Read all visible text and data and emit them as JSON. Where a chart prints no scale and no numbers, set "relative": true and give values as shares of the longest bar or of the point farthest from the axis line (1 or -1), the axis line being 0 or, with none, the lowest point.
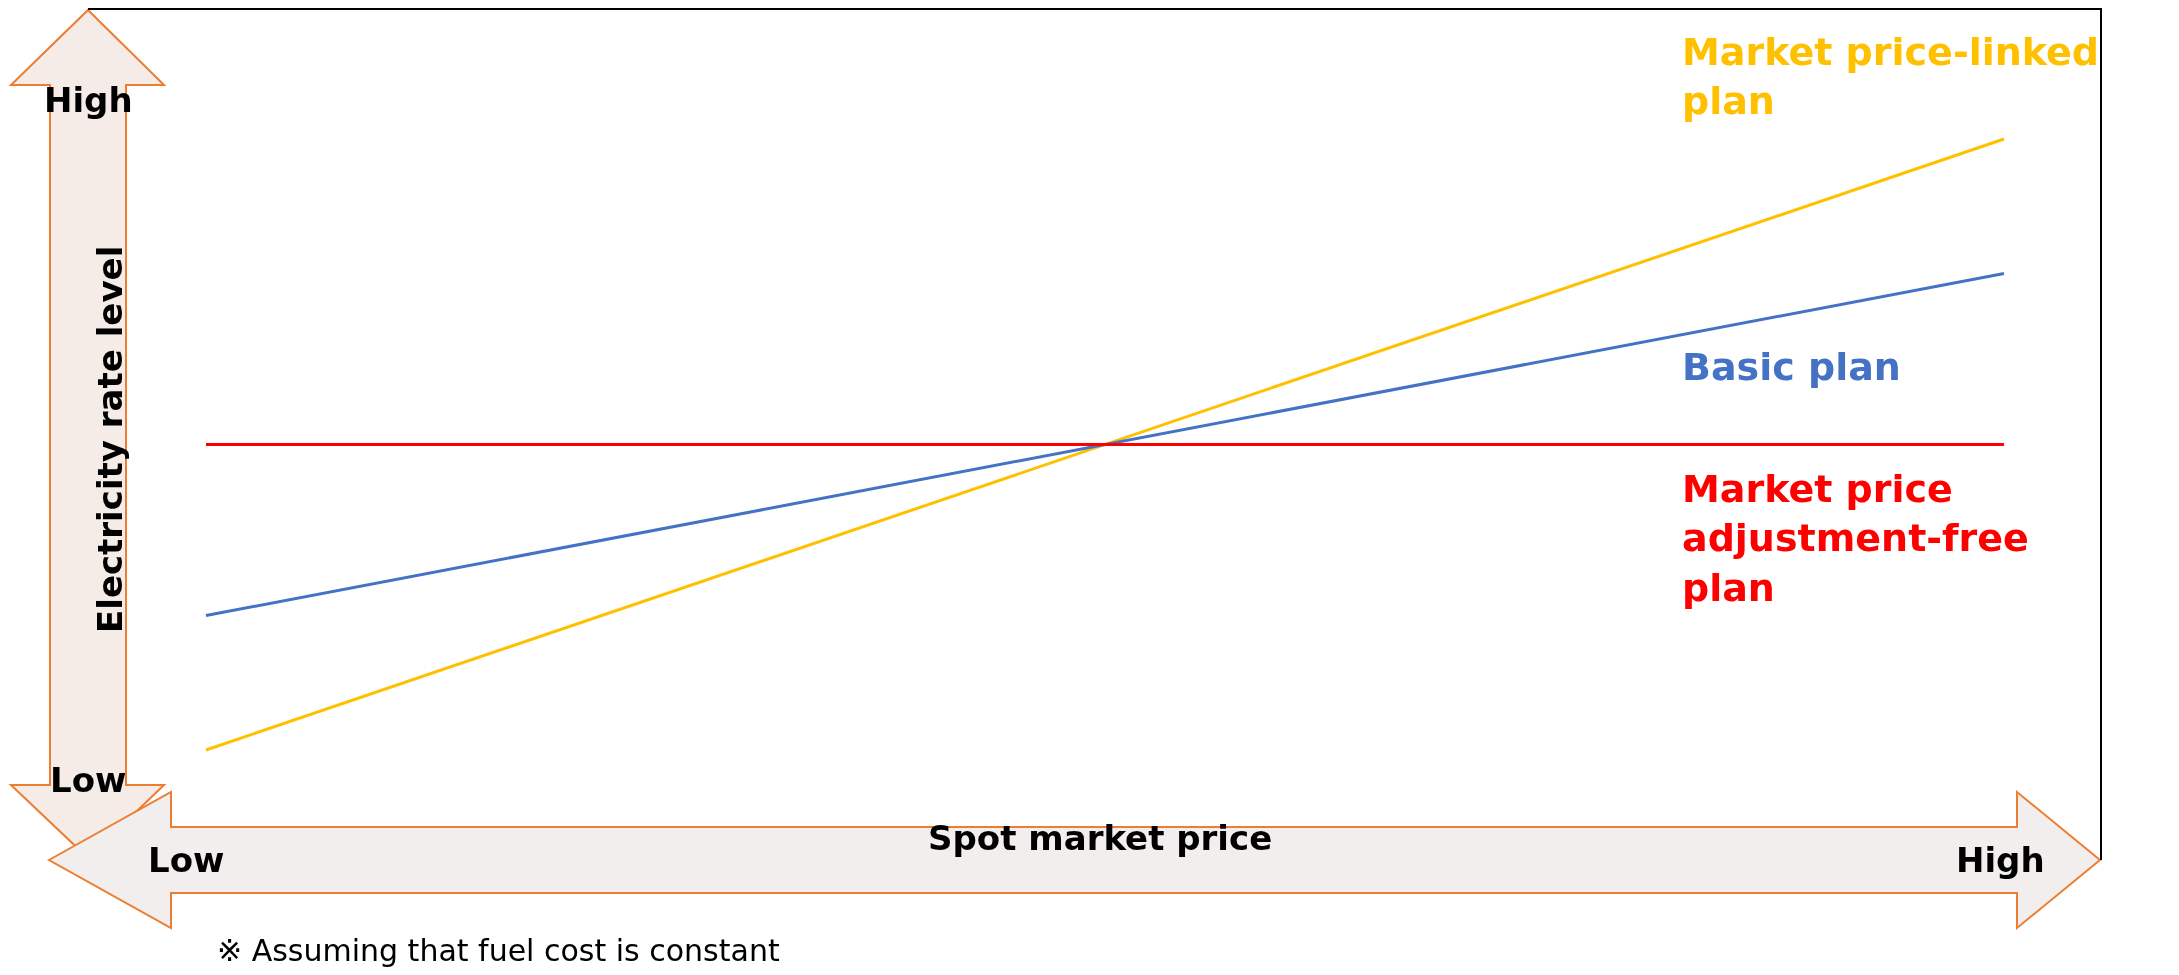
{
  "chart_data": {
    "type": "line",
    "relative": true,
    "categories": [
      null,
      null
    ],
    "xlabel": "Spot market price",
    "ylabel": "Electricity rate level",
    "series": [
      {
        "name": "Market price-linked plan",
        "color": "#ffc000",
        "values": [
          0,
          1
        ]
      },
      {
        "name": "Basic plan",
        "color": "#4472c4",
        "values": [
          0.22,
          0.78
        ]
      },
      {
        "name": "Market price adjustment-free plan",
        "color": "#ff0000",
        "values": [
          0.5,
          0.5
        ]
      }
    ],
    "annotations": [
      "High",
      "Low",
      "Low",
      "High",
      "※ Assuming that fuel cost is constant"
    ],
    "legend": false,
    "marker": "none",
    "line_style": "solid"
  }
}
